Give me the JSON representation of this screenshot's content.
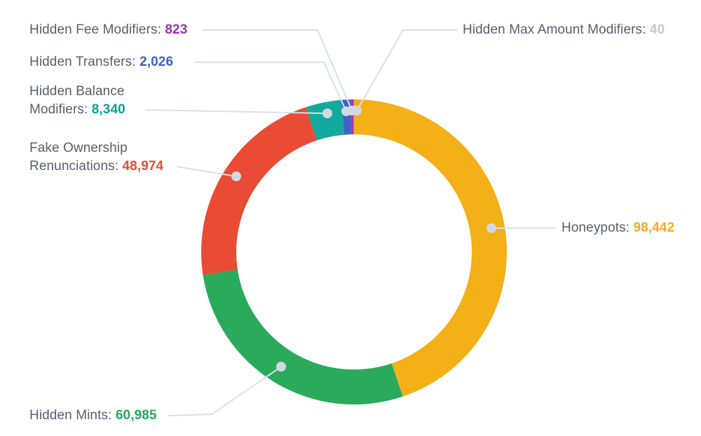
{
  "chart_data": {
    "type": "pie",
    "subtype": "donut",
    "title": "",
    "direction": "clockwise",
    "start_angle_deg": 0,
    "legend_position": "callout-labels",
    "style": {
      "background": "#FFFFFF",
      "label_text_color": "#55606B",
      "leader_line_color": "#DAE0E5",
      "leader_dot_color": "#D2D9DF"
    },
    "segments": [
      {
        "id": "honeypots",
        "label": "Honeypots",
        "label_display": "Honeypots:",
        "value": 98442,
        "value_display": "98,442",
        "color": "#F3B017",
        "value_color": "#F0AC25"
      },
      {
        "id": "hidden-mints",
        "label": "Hidden Mints",
        "label_display": "Hidden Mints:",
        "value": 60985,
        "value_display": "60,985",
        "color": "#2AAA5B",
        "value_color": "#27A65A"
      },
      {
        "id": "fake-ownership-renunciations",
        "label": "Fake Ownership Renunciations",
        "label_display": "Fake Ownership Renunciations:",
        "value": 48974,
        "value_display": "48,974",
        "color": "#E94B35",
        "value_color": "#E84A33"
      },
      {
        "id": "hidden-balance-modifiers",
        "label": "Hidden Balance Modifiers",
        "label_display": "Hidden Balance Modifiers:",
        "value": 8340,
        "value_display": "8,340",
        "color": "#15A89E",
        "value_color": "#11A096"
      },
      {
        "id": "hidden-transfers",
        "label": "Hidden Transfers",
        "label_display": "Hidden Transfers:",
        "value": 2026,
        "value_display": "2,026",
        "color": "#3E63C6",
        "value_color": "#3465C0"
      },
      {
        "id": "hidden-fee-modifiers",
        "label": "Hidden Fee Modifiers",
        "label_display": "Hidden Fee Modifiers:",
        "value": 823,
        "value_display": "823",
        "color": "#A136BE",
        "value_color": "#9C2FB1"
      },
      {
        "id": "hidden-max-amount-modifiers",
        "label": "Hidden Max Amount Modifiers",
        "label_display": "Hidden Max Amount Modifiers:",
        "value": 40,
        "value_display": "40",
        "color": "#CBD1D8",
        "value_color": "#C3CBD2"
      }
    ]
  }
}
